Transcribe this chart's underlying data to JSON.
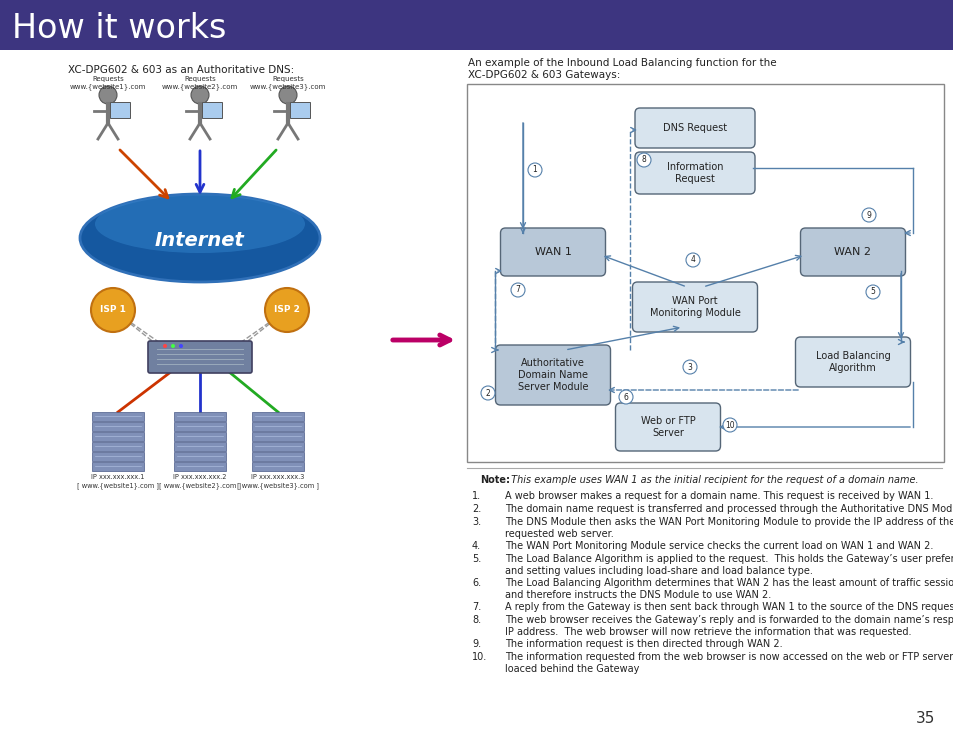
{
  "title": "How it works",
  "title_bg": "#3d3580",
  "title_color": "#ffffff",
  "title_fontsize": 24,
  "page_bg": "#ffffff",
  "page_number": "35",
  "left_title": "XC-DPG602 & 603 as an Authoritative DNS:",
  "right_title_1": "An example of the Inbound Load Balancing function for the",
  "right_title_2": "XC-DPG602 & 603 Gateways:",
  "note_bold": "Note:",
  "note_italic": " This example uses WAN 1 as the initial recipient for the request of a domain name.",
  "items": [
    "A web browser makes a request for a domain name. This request is received by WAN 1.",
    "The domain name request is transferred and processed through the Authoritative DNS Module.",
    "The DNS Module then asks the WAN Port Monitoring Module to provide the IP address of the\nrequested web server.",
    "The WAN Port Monitoring Module service checks the current load on WAN 1 and WAN 2.",
    "The Load Balance Algorithm is applied to the request.  This holds the Gateway’s user preferences\nand setting values including load-share and load balance type.",
    "The Load Balancing Algorithm determines that WAN 2 has the least amount of traffic sessions\nand therefore instructs the DNS Module to use WAN 2.",
    "A reply from the Gateway is then sent back through WAN 1 to the source of the DNS request.",
    "The web browser receives the Gateway’s reply and is forwarded to the domain name’s respective\nIP address.  The web browser will now retrieve the information that was requested.",
    "The information request is then directed through WAN 2.",
    "The information requested from the web browser is now accessed on the web or FTP server\nloaced behind the Gateway"
  ],
  "box_fill_light": "#d8e4ee",
  "box_fill_dark": "#b8c8d8",
  "box_edge_light": "#8aabcc",
  "box_edge_dark": "#556677",
  "arrow_color": "#5580aa",
  "divider_color": "#aaaaaa",
  "magenta_arrow": "#bb0066",
  "internet_fill": "#1a5fa8",
  "internet_light": "#4090cc",
  "isp_fill": "#e8a020",
  "isp_edge": "#c07010",
  "user_color": "#777777",
  "server_fill": "#8090b8",
  "server_edge": "#4a5a88"
}
